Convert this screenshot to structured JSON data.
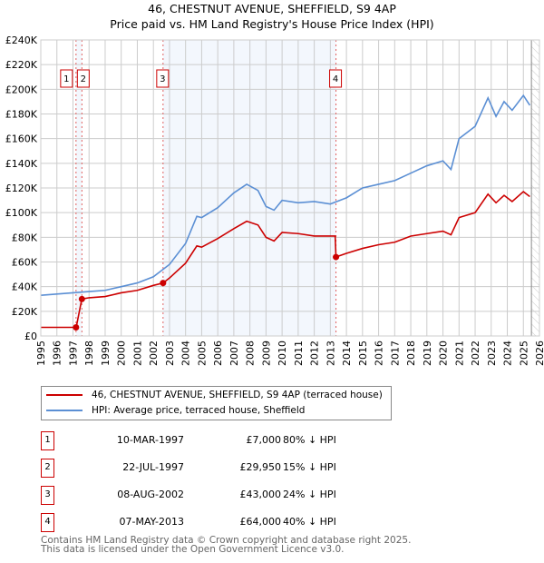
{
  "chart_data": {
    "type": "line",
    "title": "46, CHESTNUT AVENUE, SHEFFIELD, S9 4AP",
    "subtitle": "Price paid vs. HM Land Registry's House Price Index (HPI)",
    "xlim": [
      1995,
      2026
    ],
    "ylim": [
      0,
      240000
    ],
    "x_ticks": [
      "1995",
      "1996",
      "1997",
      "1998",
      "1999",
      "2000",
      "2001",
      "2002",
      "2003",
      "2004",
      "2005",
      "2006",
      "2007",
      "2008",
      "2009",
      "2010",
      "2011",
      "2012",
      "2013",
      "2014",
      "2015",
      "2016",
      "2017",
      "2018",
      "2019",
      "2020",
      "2021",
      "2022",
      "2023",
      "2024",
      "2025",
      "2026"
    ],
    "y_ticks": [
      {
        "v": 0,
        "label": "£0"
      },
      {
        "v": 20000,
        "label": "£20K"
      },
      {
        "v": 40000,
        "label": "£40K"
      },
      {
        "v": 60000,
        "label": "£60K"
      },
      {
        "v": 80000,
        "label": "£80K"
      },
      {
        "v": 100000,
        "label": "£100K"
      },
      {
        "v": 120000,
        "label": "£120K"
      },
      {
        "v": 140000,
        "label": "£140K"
      },
      {
        "v": 160000,
        "label": "£160K"
      },
      {
        "v": 180000,
        "label": "£180K"
      },
      {
        "v": 200000,
        "label": "£200K"
      },
      {
        "v": 220000,
        "label": "£220K"
      },
      {
        "v": 240000,
        "label": "£240K"
      }
    ],
    "grid": true,
    "legend_position": "below",
    "series": [
      {
        "name": "46, CHESTNUT AVENUE, SHEFFIELD, S9 4AP (terraced house)",
        "color": "#cc0000",
        "points": [
          [
            1995,
            7000
          ],
          [
            1997.19,
            7000
          ],
          [
            1997.2,
            7000
          ],
          [
            1997.55,
            29950
          ],
          [
            1998,
            31000
          ],
          [
            1999,
            32000
          ],
          [
            2000,
            35000
          ],
          [
            2001,
            37000
          ],
          [
            2002,
            41000
          ],
          [
            2002.6,
            43000
          ],
          [
            2003,
            47000
          ],
          [
            2004,
            59000
          ],
          [
            2004.7,
            73000
          ],
          [
            2005,
            72000
          ],
          [
            2006,
            79000
          ],
          [
            2007,
            87000
          ],
          [
            2007.8,
            93000
          ],
          [
            2008.5,
            90000
          ],
          [
            2009,
            80000
          ],
          [
            2009.5,
            77000
          ],
          [
            2010,
            84000
          ],
          [
            2011,
            83000
          ],
          [
            2012,
            81000
          ],
          [
            2013.3,
            81000
          ],
          [
            2013.35,
            64000
          ],
          [
            2014,
            67000
          ],
          [
            2015,
            71000
          ],
          [
            2016,
            74000
          ],
          [
            2017,
            76000
          ],
          [
            2018,
            81000
          ],
          [
            2019,
            83000
          ],
          [
            2020,
            85000
          ],
          [
            2020.5,
            82000
          ],
          [
            2021,
            96000
          ],
          [
            2022,
            100000
          ],
          [
            2022.8,
            115000
          ],
          [
            2023.3,
            108000
          ],
          [
            2023.8,
            114000
          ],
          [
            2024.3,
            109000
          ],
          [
            2025,
            117000
          ],
          [
            2025.4,
            113000
          ]
        ]
      },
      {
        "name": "HPI: Average price, terraced house, Sheffield",
        "color": "#5b8fd4",
        "points": [
          [
            1995,
            33000
          ],
          [
            1996,
            34000
          ],
          [
            1997,
            35000
          ],
          [
            1998,
            36000
          ],
          [
            1999,
            37000
          ],
          [
            2000,
            40000
          ],
          [
            2001,
            43000
          ],
          [
            2002,
            48000
          ],
          [
            2003,
            58000
          ],
          [
            2004,
            75000
          ],
          [
            2004.7,
            97000
          ],
          [
            2005,
            96000
          ],
          [
            2006,
            104000
          ],
          [
            2007,
            116000
          ],
          [
            2007.8,
            123000
          ],
          [
            2008.5,
            118000
          ],
          [
            2009,
            105000
          ],
          [
            2009.5,
            102000
          ],
          [
            2010,
            110000
          ],
          [
            2011,
            108000
          ],
          [
            2012,
            109000
          ],
          [
            2013,
            107000
          ],
          [
            2014,
            112000
          ],
          [
            2015,
            120000
          ],
          [
            2016,
            123000
          ],
          [
            2017,
            126000
          ],
          [
            2018,
            132000
          ],
          [
            2019,
            138000
          ],
          [
            2020,
            142000
          ],
          [
            2020.5,
            135000
          ],
          [
            2021,
            160000
          ],
          [
            2022,
            170000
          ],
          [
            2022.8,
            193000
          ],
          [
            2023.3,
            178000
          ],
          [
            2023.8,
            190000
          ],
          [
            2024.3,
            183000
          ],
          [
            2025,
            195000
          ],
          [
            2025.4,
            187000
          ]
        ]
      }
    ],
    "sales": [
      {
        "n": "1",
        "x": 1997.19,
        "price": 7000
      },
      {
        "n": "2",
        "x": 1997.555,
        "price": 29950
      },
      {
        "n": "3",
        "x": 2002.6,
        "price": 43000
      },
      {
        "n": "4",
        "x": 2013.35,
        "price": 64000
      }
    ],
    "shaded_ranges": [
      [
        1997.19,
        1997.555
      ],
      [
        2002.6,
        2013.35
      ]
    ],
    "forecast_from": 2025.5
  },
  "legend": {
    "property": "46, CHESTNUT AVENUE, SHEFFIELD, S9 4AP (terraced house)",
    "hpi": "HPI: Average price, terraced house, Sheffield"
  },
  "transactions": [
    {
      "n": "1",
      "date": "10-MAR-1997",
      "price": "£7,000",
      "hpi": "80% ↓ HPI"
    },
    {
      "n": "2",
      "date": "22-JUL-1997",
      "price": "£29,950",
      "hpi": "15% ↓ HPI"
    },
    {
      "n": "3",
      "date": "08-AUG-2002",
      "price": "£43,000",
      "hpi": "24% ↓ HPI"
    },
    {
      "n": "4",
      "date": "07-MAY-2013",
      "price": "£64,000",
      "hpi": "40% ↓ HPI"
    }
  ],
  "footer": {
    "line1": "Contains HM Land Registry data © Crown copyright and database right 2025.",
    "line2": "This data is licensed under the Open Government Licence v3.0."
  }
}
